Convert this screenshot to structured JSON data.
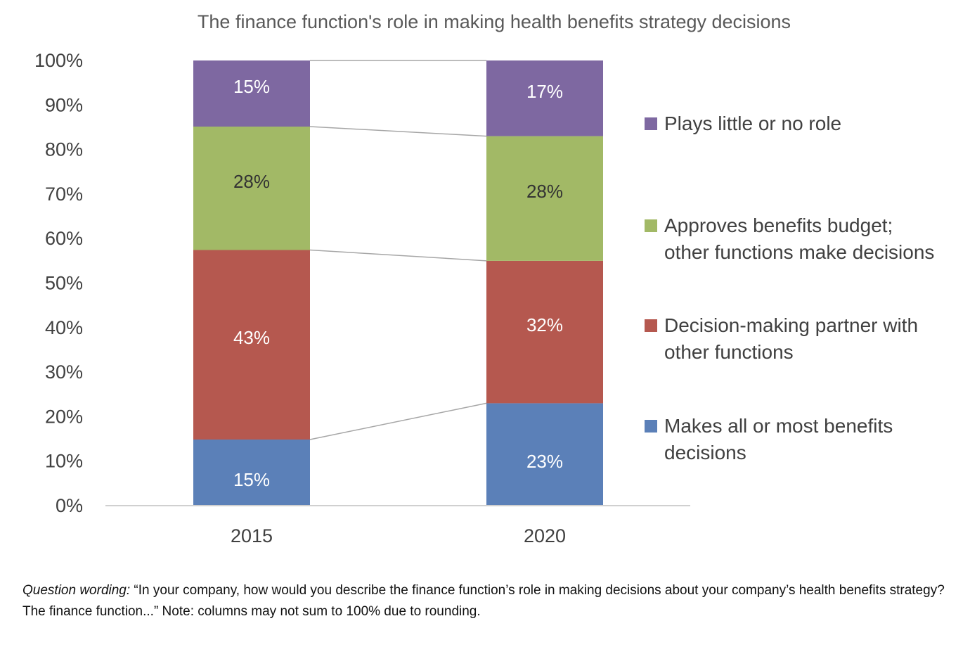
{
  "chart_data": {
    "type": "bar",
    "stacked": true,
    "title": "The finance function's role in making health benefits strategy decisions",
    "xlabel": "",
    "ylabel": "",
    "ylim": [
      0,
      100
    ],
    "y_ticks": [
      "0%",
      "10%",
      "20%",
      "30%",
      "40%",
      "50%",
      "60%",
      "70%",
      "80%",
      "90%",
      "100%"
    ],
    "y_tick_values": [
      0,
      10,
      20,
      30,
      40,
      50,
      60,
      70,
      80,
      90,
      100
    ],
    "categories": [
      "2015",
      "2020"
    ],
    "series": [
      {
        "name": "Makes all or most benefits decisions",
        "values": [
          15,
          23
        ],
        "labels": [
          "15%",
          "23%"
        ],
        "color": "#5b80b8",
        "label_color": "#ffffff"
      },
      {
        "name": "Decision-making partner with other functions",
        "values": [
          43,
          32
        ],
        "labels": [
          "43%",
          "32%"
        ],
        "color": "#b5584f",
        "label_color": "#ffffff"
      },
      {
        "name": "Approves benefits budget; other functions make decisions",
        "values": [
          28,
          28
        ],
        "labels": [
          "28%",
          "28%"
        ],
        "color": "#a2b966",
        "label_color": "#333333"
      },
      {
        "name": "Plays little or no role",
        "values": [
          15,
          17
        ],
        "labels": [
          "15%",
          "17%"
        ],
        "color": "#7e68a1",
        "label_color": "#ffffff"
      }
    ],
    "legend_position": "right",
    "legend_entries": [
      {
        "lines": [
          "Plays little or no role"
        ],
        "color": "#7e68a1"
      },
      {
        "lines": [
          "Approves benefits budget;",
          "other functions make decisions"
        ],
        "color": "#a2b966"
      },
      {
        "lines": [
          "Decision-making partner with",
          "other functions"
        ],
        "color": "#b5584f"
      },
      {
        "lines": [
          "Makes all or most benefits",
          "decisions"
        ],
        "color": "#5b80b8"
      }
    ],
    "series_lines": true,
    "grid": false
  },
  "footnote": {
    "lead": "Question wording:",
    "text": " “In your company, how would you describe the finance function’s role in making decisions about your company’s health benefits strategy? The finance function...” Note: columns may not sum to 100% due to rounding."
  }
}
